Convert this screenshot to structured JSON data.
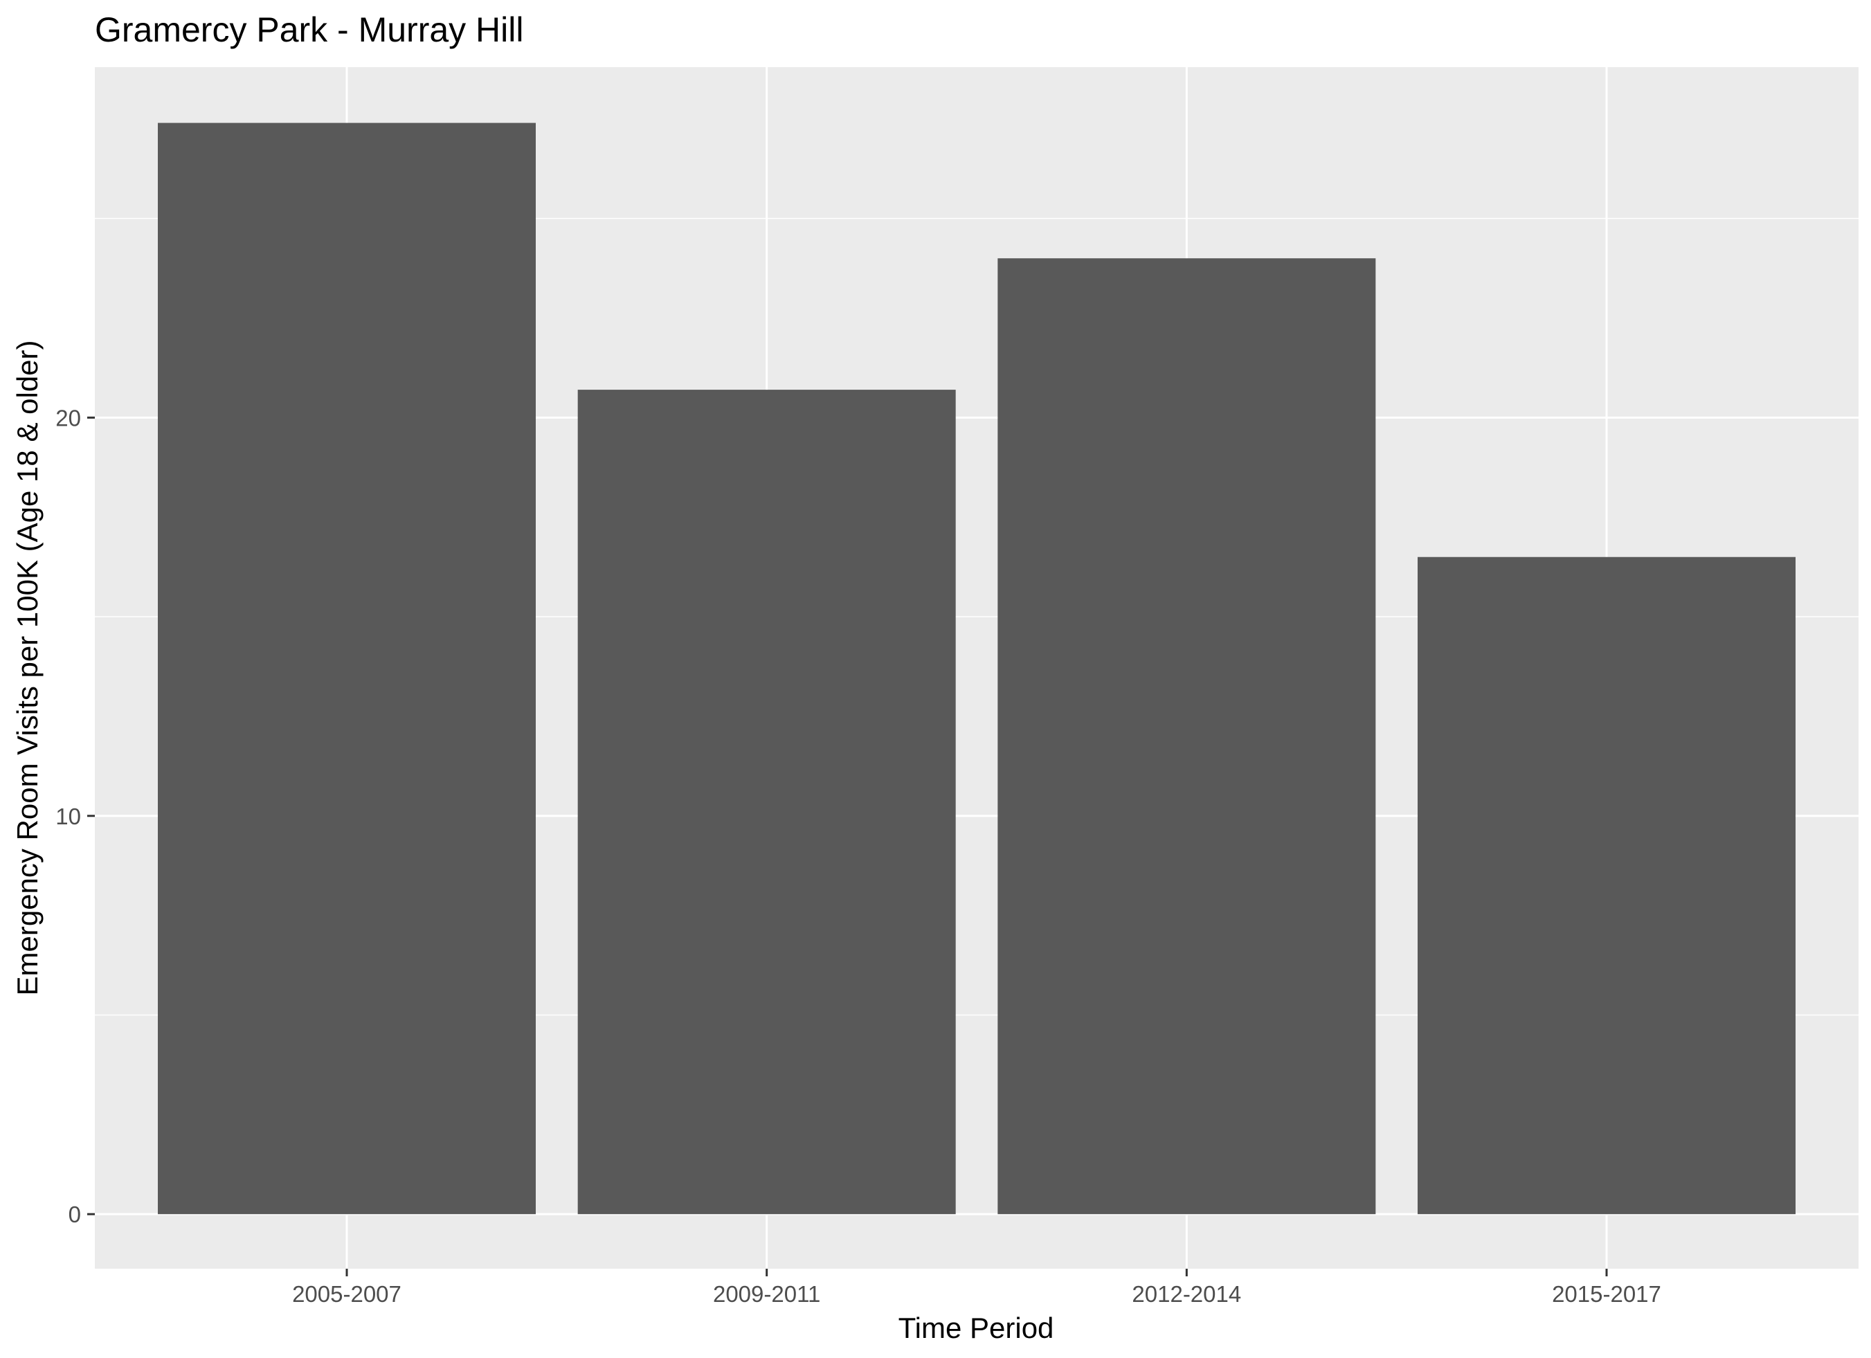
{
  "chart_data": {
    "type": "bar",
    "title": "Gramercy Park - Murray Hill",
    "xlabel": "Time Period",
    "ylabel": "Emergency Room Visits per 100K (Age 18 & older)",
    "categories": [
      "2005-2007",
      "2009-2011",
      "2012-2014",
      "2015-2017"
    ],
    "values": [
      27.4,
      20.7,
      24.0,
      16.5
    ],
    "ylim": [
      -1.37,
      28.8
    ],
    "yticks": [
      0,
      10,
      20
    ],
    "grid": true,
    "colors": {
      "panel": "#ebebeb",
      "grid": "#ffffff",
      "bar": "#595959",
      "tick": "#333333"
    }
  }
}
